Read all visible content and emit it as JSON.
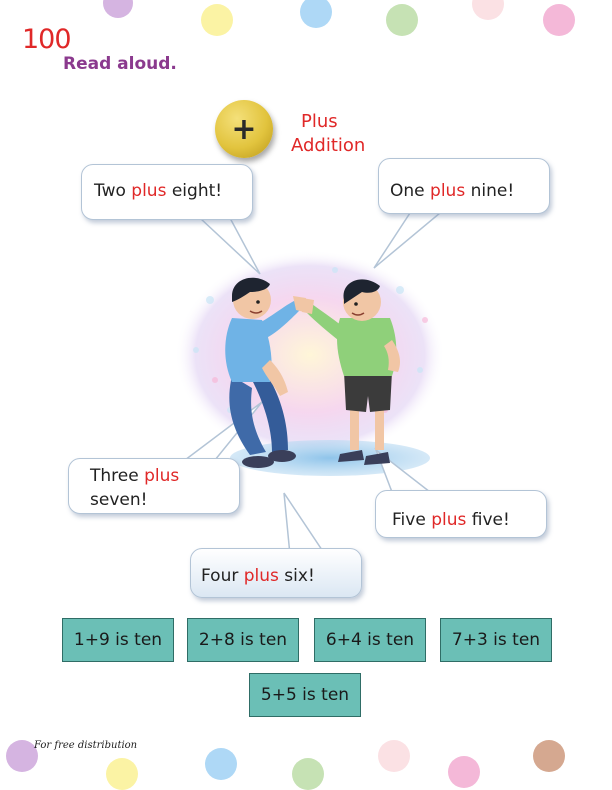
{
  "page": {
    "number": "100",
    "instruction": "Read aloud."
  },
  "plus_sign": {
    "symbol": "+",
    "word": "Plus",
    "meaning": "Addition"
  },
  "bubbles": {
    "top_left": {
      "pre": "Two ",
      "hl": "plus",
      "post": " eight!"
    },
    "top_right": {
      "pre": "One ",
      "hl": "plus",
      "post": " nine!"
    },
    "mid_left": {
      "pre": "Three ",
      "hl": "plus",
      "post": "seven!"
    },
    "bottom_mid": {
      "pre": "Four ",
      "hl": "plus",
      "post": " six!"
    },
    "bottom_right": {
      "pre": "Five ",
      "hl": "plus",
      "post": " five!"
    }
  },
  "equations": [
    "1+9 is ten",
    "2+8 is ten",
    "6+4 is ten",
    "7+3 is ten",
    "5+5 is ten"
  ],
  "footer": "For free distribution",
  "colors": {
    "accent_red": "#e02828",
    "instruction_purple": "#8b3a8e",
    "box_teal": "#6bbfb6"
  }
}
